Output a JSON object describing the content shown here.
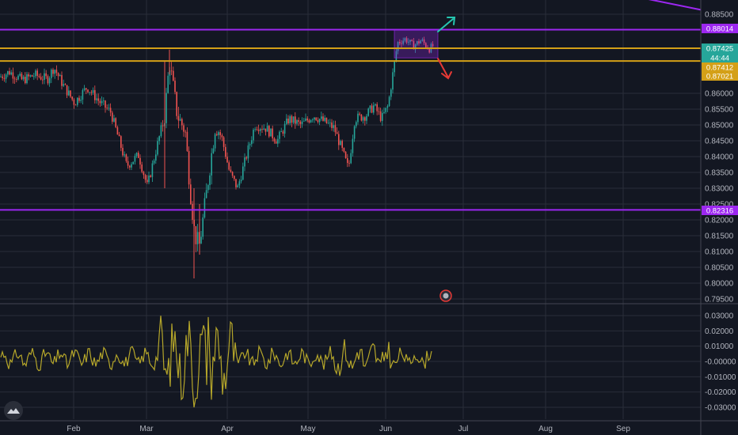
{
  "chart_data": [
    {
      "type": "candlestick",
      "symbol_context": "price panel",
      "x_labels": [
        "Feb",
        "Mar",
        "Apr",
        "May",
        "Jun",
        "Jul",
        "Aug",
        "Sep"
      ],
      "y_ticks": [
        "0.88500",
        "0.86000",
        "0.85500",
        "0.85000",
        "0.84500",
        "0.84000",
        "0.83500",
        "0.83000",
        "0.82500",
        "0.82000",
        "0.81500",
        "0.81000",
        "0.80500",
        "0.80000",
        "0.79500"
      ],
      "ylim": [
        0.795,
        0.8895
      ],
      "grid": true,
      "horizontal_lines": [
        {
          "label": "0.88014",
          "value": 0.88014,
          "color": "#9c27f0"
        },
        {
          "label": "0.82316",
          "value": 0.82316,
          "color": "#9c27f0"
        },
        {
          "label": "",
          "value": 0.87425,
          "color": "#d4a017"
        },
        {
          "label": "",
          "value": 0.87021,
          "color": "#d4a017"
        }
      ],
      "price_tags": [
        {
          "label": "0.88014",
          "color": "#9c27f0"
        },
        {
          "label": "0.87425",
          "color": "#26a69a"
        },
        {
          "label": "44:44",
          "color": "#26a69a"
        },
        {
          "label": "0.87412",
          "color": "#d4a017"
        },
        {
          "label": "0.87021",
          "color": "#d4a017"
        },
        {
          "label": "0.82316",
          "color": "#9c27f0"
        }
      ],
      "range_box": {
        "top": 0.88,
        "bottom": 0.8712
      },
      "trend_line": {
        "from": 0.8895,
        "to": 0.8864
      },
      "series_points": [
        [
          0,
          0.8652
        ],
        [
          12,
          0.8668
        ],
        [
          28,
          0.8642
        ],
        [
          44,
          0.8658
        ],
        [
          60,
          0.8645
        ],
        [
          68,
          0.8682
        ],
        [
          80,
          0.8625
        ],
        [
          94,
          0.857
        ],
        [
          110,
          0.862
        ],
        [
          125,
          0.8575
        ],
        [
          140,
          0.854
        ],
        [
          160,
          0.837
        ],
        [
          175,
          0.8405
        ],
        [
          186,
          0.8305
        ],
        [
          198,
          0.843
        ],
        [
          208,
          0.853
        ],
        [
          214,
          0.87
        ],
        [
          224,
          0.853
        ],
        [
          234,
          0.848
        ],
        [
          240,
          0.83
        ],
        [
          246,
          0.815
        ],
        [
          252,
          0.812
        ],
        [
          262,
          0.831
        ],
        [
          272,
          0.85
        ],
        [
          280,
          0.846
        ],
        [
          290,
          0.835
        ],
        [
          300,
          0.83
        ],
        [
          312,
          0.841
        ],
        [
          322,
          0.85
        ],
        [
          336,
          0.849
        ],
        [
          350,
          0.845
        ],
        [
          365,
          0.852
        ],
        [
          380,
          0.85
        ],
        [
          396,
          0.853
        ],
        [
          410,
          0.851
        ],
        [
          422,
          0.849
        ],
        [
          432,
          0.842
        ],
        [
          440,
          0.836
        ],
        [
          448,
          0.852
        ],
        [
          462,
          0.853
        ],
        [
          472,
          0.856
        ],
        [
          482,
          0.852
        ],
        [
          490,
          0.856
        ],
        [
          496,
          0.866
        ],
        [
          502,
          0.876
        ],
        [
          512,
          0.8772
        ],
        [
          522,
          0.875
        ],
        [
          532,
          0.8768
        ],
        [
          542,
          0.874
        ],
        [
          548,
          0.8752
        ]
      ]
    },
    {
      "type": "line",
      "symbol_context": "oscillator panel",
      "y_ticks": [
        "0.03000",
        "0.02000",
        "0.01000",
        "-0.00000",
        "-0.01000",
        "-0.02000",
        "-0.03000"
      ],
      "ylim": [
        -0.035,
        0.035
      ],
      "grid": true,
      "line_color": "#b5a62a"
    }
  ],
  "icons": {
    "buy_arrow": "up-right-arrow",
    "sell_arrow": "down-right-arrow",
    "event_marker": "event-icon",
    "logo": "mountain-logo"
  },
  "colors": {
    "background": "#131722",
    "grid": "#2a2e39",
    "up_candle": "#26a69a",
    "down_candle": "#ef5350",
    "level": "#9c27f0",
    "zone": "#d4a017"
  }
}
